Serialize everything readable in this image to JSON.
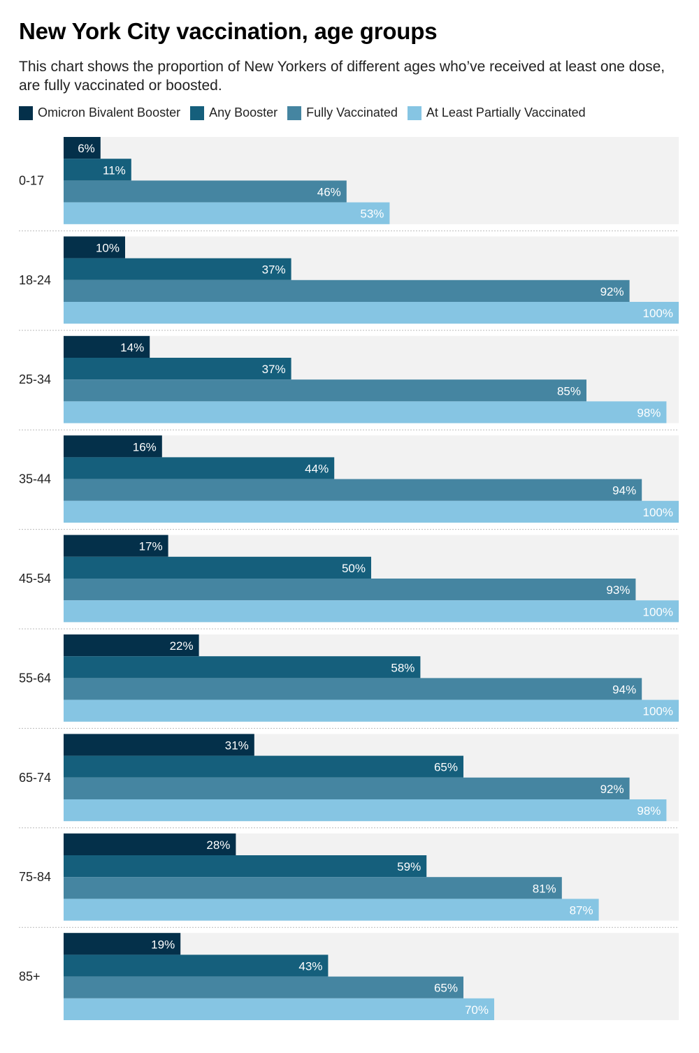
{
  "header": {
    "title": "New York City vaccination, age groups",
    "subtitle": "This chart shows the proportion of New Yorkers of different ages who’ve received at least one dose, are fully vaccinated or boosted."
  },
  "colors": {
    "panel_background": "#f2f2f2",
    "label_text": "#ffffff",
    "separator": "#bbbbbb"
  },
  "chart_data": {
    "type": "bar",
    "orientation": "horizontal",
    "title": "New York City vaccination, age groups",
    "categories": [
      "0-17",
      "18-24",
      "25-34",
      "35-44",
      "45-54",
      "55-64",
      "65-74",
      "75-84",
      "85+"
    ],
    "series": [
      {
        "name": "Omicron Bivalent Booster",
        "color": "#04304a",
        "values": [
          6,
          10,
          14,
          16,
          17,
          22,
          31,
          28,
          19
        ]
      },
      {
        "name": "Any Booster",
        "color": "#155f7c",
        "values": [
          11,
          37,
          37,
          44,
          50,
          58,
          65,
          59,
          43
        ]
      },
      {
        "name": "Fully Vaccinated",
        "color": "#4585a1",
        "values": [
          46,
          92,
          85,
          94,
          93,
          94,
          92,
          81,
          65
        ]
      },
      {
        "name": "At Least Partially Vaccinated",
        "color": "#86c5e3",
        "values": [
          53,
          100,
          98,
          100,
          100,
          100,
          98,
          87,
          70
        ]
      }
    ],
    "value_suffix": "%",
    "xlim": [
      0,
      100
    ],
    "legend": "top-left",
    "grid": false
  }
}
